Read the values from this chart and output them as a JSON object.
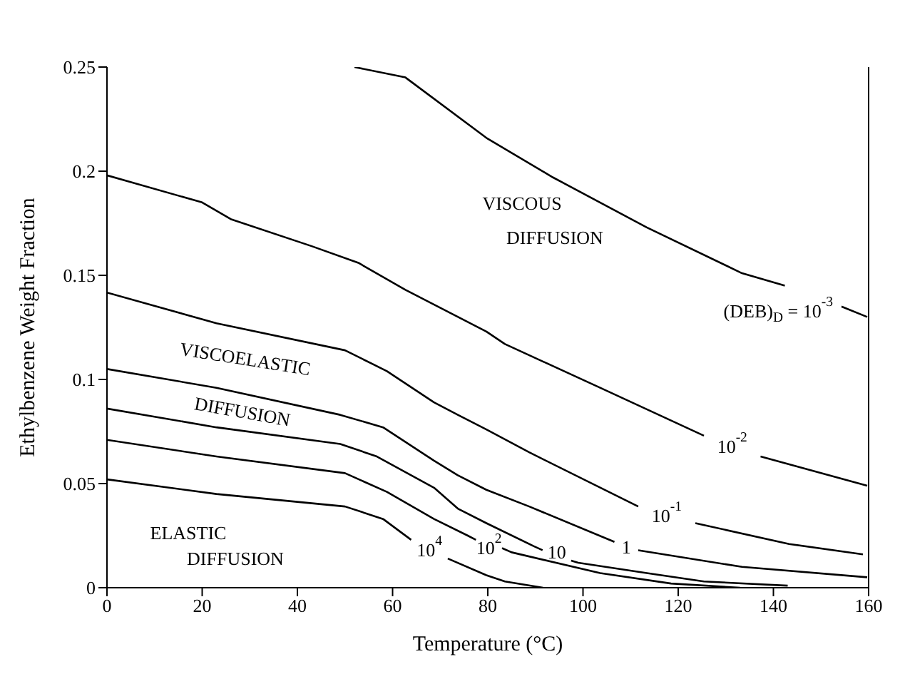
{
  "chart_data": {
    "type": "line",
    "xlabel": "Temperature (°C)",
    "ylabel": "Ethylbenzene Weight Fraction",
    "xlim": [
      0,
      160
    ],
    "xticks": [
      0,
      20,
      40,
      60,
      80,
      100,
      120,
      140,
      160
    ],
    "ylim": [
      0,
      0.25
    ],
    "yticks": [
      0,
      0.05,
      0.1,
      0.15,
      0.2,
      0.25
    ],
    "marker": "none",
    "line_style": "solid",
    "series": [
      {
        "name": "(DEB)$_{D}$ = 10$^{-3}$",
        "color": "#000000",
        "x": [
          52,
          62.7,
          79.7,
          93.7,
          113.4,
          133.4,
          142.4,
          148,
          154.3,
          159.7
        ],
        "values": [
          0.25,
          0.245,
          0.216,
          0.197,
          0.173,
          0.151,
          0.145,
          null,
          0.135,
          0.13
        ]
      },
      {
        "name": "10$^{-2}$",
        "color": "#000000",
        "x": [
          0,
          20,
          26,
          43,
          52.8,
          62.7,
          79.7,
          83.6,
          103.6,
          125.4,
          131,
          137.3,
          159.7
        ],
        "values": [
          0.198,
          0.185,
          0.177,
          0.164,
          0.156,
          0.143,
          0.123,
          0.117,
          0.096,
          0.073,
          null,
          0.063,
          0.049
        ]
      },
      {
        "name": "10$^{-1}$",
        "color": "#000000",
        "x": [
          0,
          23,
          50,
          58.8,
          68.7,
          73.7,
          79.7,
          88.7,
          111.6,
          117,
          123.6,
          143.3,
          158.8
        ],
        "values": [
          0.1417,
          0.127,
          0.114,
          0.104,
          0.089,
          0.083,
          0.076,
          0.065,
          0.039,
          null,
          0.031,
          0.021,
          0.016
        ]
      },
      {
        "name": "1",
        "color": "#000000",
        "x": [
          0,
          23,
          49,
          58,
          68.7,
          73.7,
          79.7,
          88.7,
          106.6,
          109,
          111.6,
          133.4,
          159.7
        ],
        "values": [
          0.105,
          0.096,
          0.083,
          0.077,
          0.061,
          0.054,
          0.047,
          0.039,
          0.022,
          null,
          0.018,
          0.01,
          0.005
        ]
      },
      {
        "name": "10",
        "color": "#000000",
        "x": [
          0,
          23,
          49,
          56.7,
          68.7,
          73.7,
          79.7,
          89.6,
          91.5,
          94,
          97.5,
          99,
          113.4,
          125.4,
          143
        ],
        "values": [
          0.086,
          0.077,
          0.069,
          0.063,
          0.048,
          0.038,
          0.031,
          0.02,
          0.018,
          null,
          0.013,
          0.012,
          0.007,
          0.003,
          0.001
        ]
      },
      {
        "name": "10$^{2}$",
        "color": "#000000",
        "x": [
          0,
          23,
          50,
          58.8,
          68.7,
          75.8,
          77.5,
          80,
          83,
          85,
          103.6,
          118.5,
          133
        ],
        "values": [
          0.071,
          0.063,
          0.055,
          0.046,
          0.033,
          0.025,
          0.023,
          null,
          0.019,
          0.017,
          0.007,
          0.002,
          0
        ]
      },
      {
        "name": "10$^{4}$",
        "color": "#000000",
        "x": [
          0,
          23,
          50,
          58,
          63.9,
          68,
          71.6,
          79.7,
          83.6,
          91.6
        ],
        "values": [
          0.052,
          0.045,
          0.039,
          0.033,
          0.023,
          null,
          0.014,
          0.006,
          0.003,
          0
        ]
      }
    ],
    "annotations": [
      "VISCOUS",
      "DIFFUSION",
      "VISCOELASTIC",
      "DIFFUSION",
      "ELASTIC",
      "DIFFUSION"
    ]
  }
}
